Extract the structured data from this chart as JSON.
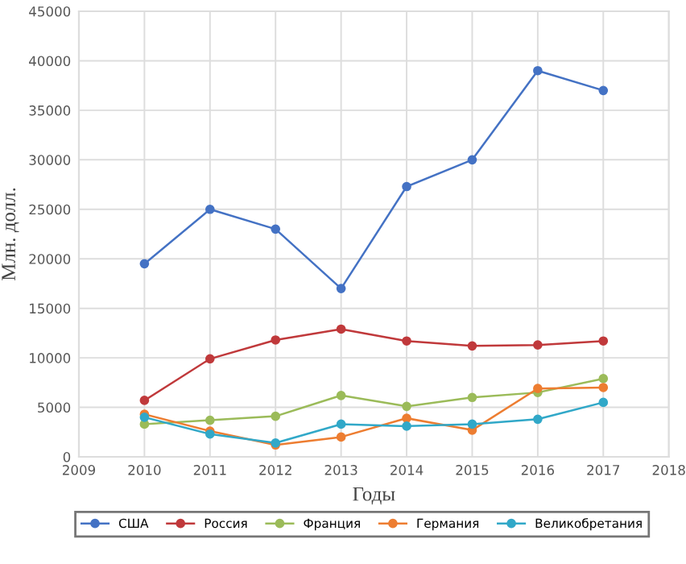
{
  "chart_data": {
    "type": "line",
    "xlabel": "Годы",
    "ylabel": "Млн. долл.",
    "x": [
      2010,
      2011,
      2012,
      2013,
      2014,
      2015,
      2016,
      2017
    ],
    "series": [
      {
        "name": "США",
        "color": "#4472c4",
        "values": [
          19500,
          25000,
          23000,
          17000,
          27300,
          30000,
          39000,
          37000
        ]
      },
      {
        "name": "Россия",
        "color": "#c0393b",
        "values": [
          5700,
          9900,
          11800,
          12900,
          11700,
          11200,
          11300,
          11700
        ]
      },
      {
        "name": "Франция",
        "color": "#9bbb59",
        "values": [
          3300,
          3700,
          4100,
          6200,
          5100,
          6000,
          6500,
          7900
        ]
      },
      {
        "name": "Германия",
        "color": "#ed7d31",
        "values": [
          4300,
          2600,
          1200,
          2000,
          3900,
          2700,
          6900,
          7000
        ]
      },
      {
        "name": "Великобретания",
        "color": "#31a8c8",
        "values": [
          4000,
          2300,
          1400,
          3300,
          3100,
          3300,
          3800,
          5500
        ]
      }
    ],
    "xlim": [
      2009,
      2018
    ],
    "xticks": [
      2009,
      2010,
      2011,
      2012,
      2013,
      2014,
      2015,
      2016,
      2017,
      2018
    ],
    "ylim": [
      0,
      45000
    ],
    "yticks": [
      0,
      5000,
      10000,
      15000,
      20000,
      25000,
      30000,
      35000,
      40000,
      45000
    ],
    "grid": true,
    "legend": "bottom",
    "marker": "circle",
    "line_style": "solid"
  }
}
